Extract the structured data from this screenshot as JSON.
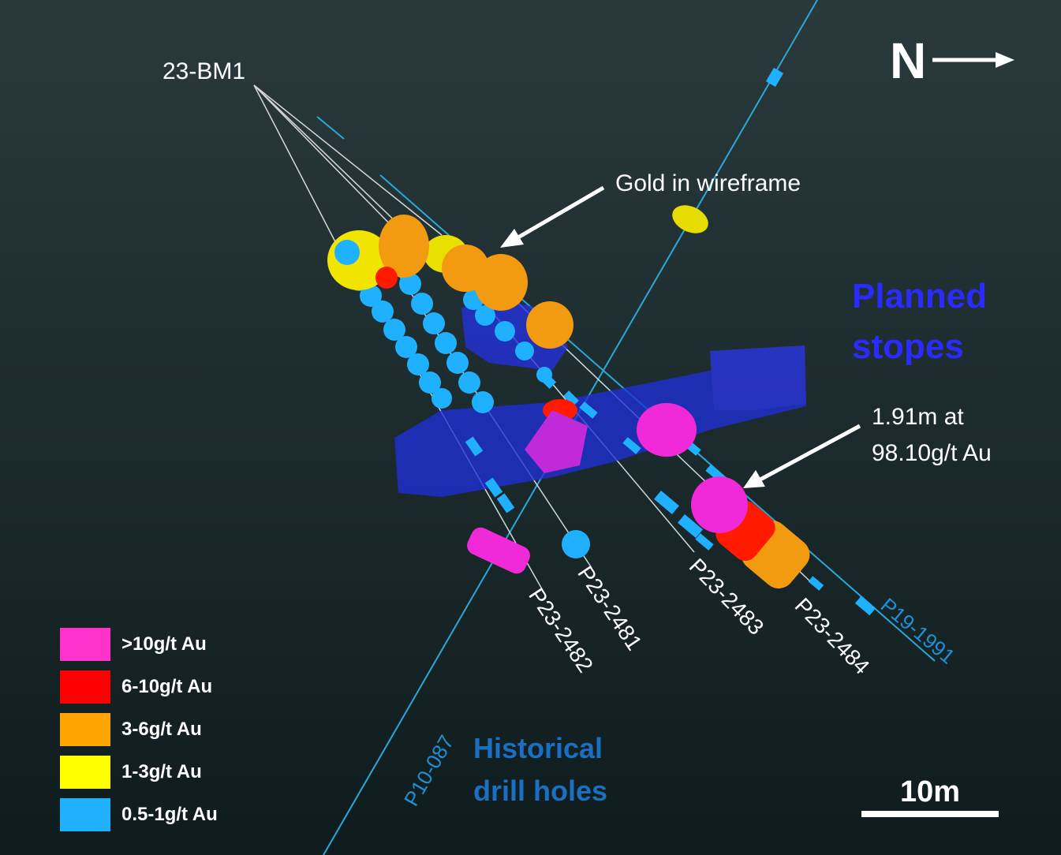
{
  "compass": {
    "label": "N"
  },
  "labels": {
    "collar": "23-BM1",
    "gold_wireframe": "Gold in wireframe",
    "intercept_line1": "1.91m at",
    "intercept_line2": "98.10g/t Au",
    "planned_line1": "Planned",
    "planned_line2": "stopes",
    "historical_line1": "Historical",
    "historical_line2": "drill holes"
  },
  "drill_holes": [
    "P23-2481",
    "P23-2482",
    "P23-2483",
    "P23-2484"
  ],
  "historical_holes": [
    "P19-1991",
    "P10-087"
  ],
  "legend": [
    {
      "label": ">10g/t Au",
      "color": "#ff33cc"
    },
    {
      "label": "6-10g/t Au",
      "color": "#ff0000"
    },
    {
      "label": "3-6g/t Au",
      "color": "#ffa500"
    },
    {
      "label": "1-3g/t Au",
      "color": "#ffff00"
    },
    {
      "label": "0.5-1g/t Au",
      "color": "#1fb0ff"
    }
  ],
  "scale_bar": {
    "label": "10m"
  }
}
